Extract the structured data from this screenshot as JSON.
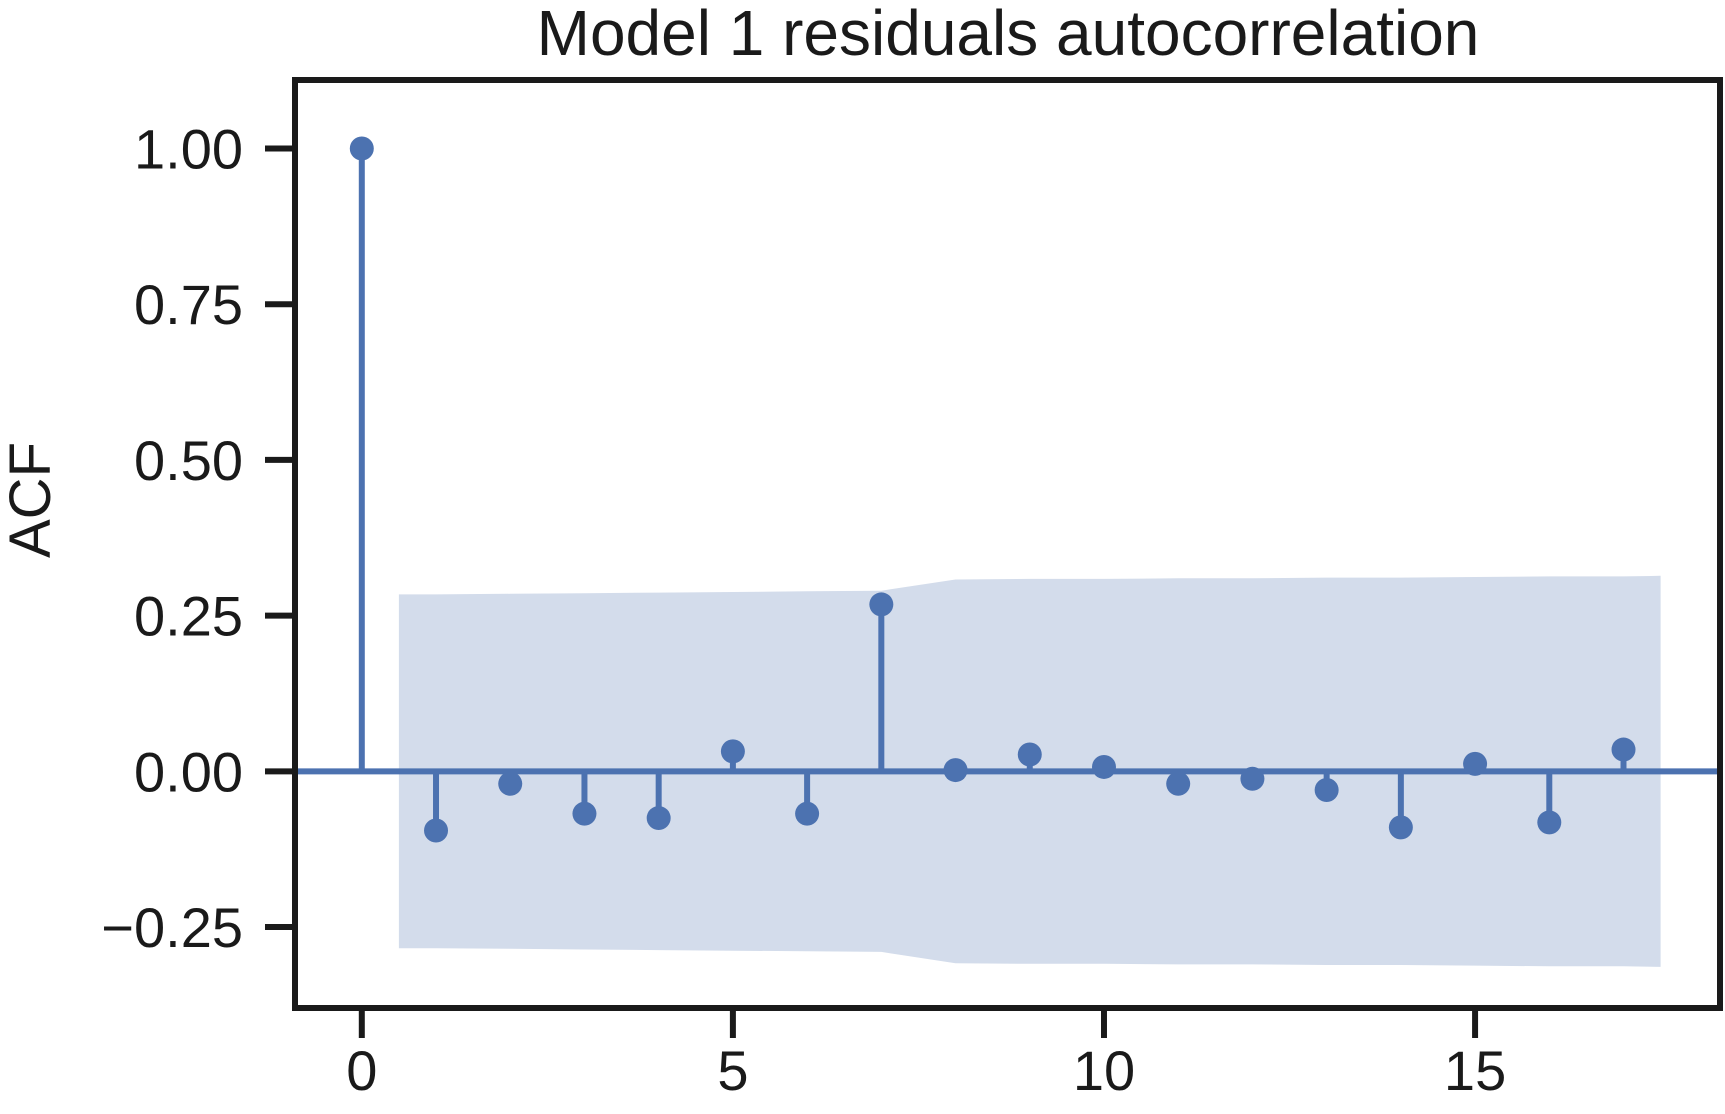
{
  "chart_data": {
    "type": "stem",
    "title": "Model 1 residuals autocorrelation",
    "xlabel": "",
    "ylabel": "ACF",
    "xlim": [
      -0.9,
      18.3
    ],
    "ylim": [
      -0.38,
      1.11
    ],
    "xticks": [
      0,
      5,
      10,
      15
    ],
    "xtick_labels": [
      "0",
      "5",
      "10",
      "15"
    ],
    "yticks": [
      1.0,
      0.75,
      0.5,
      0.25,
      0.0,
      -0.25
    ],
    "ytick_labels": [
      "1.00",
      "0.75",
      "0.50",
      "0.25",
      "0.00",
      "−0.25"
    ],
    "grid": false,
    "lags": [
      0,
      1,
      2,
      3,
      4,
      5,
      6,
      7,
      8,
      9,
      10,
      11,
      12,
      13,
      14,
      15,
      16,
      17
    ],
    "acf": [
      1.0,
      -0.095,
      -0.02,
      -0.068,
      -0.075,
      0.032,
      -0.068,
      0.268,
      0.002,
      0.027,
      0.007,
      -0.02,
      -0.012,
      -0.03,
      -0.09,
      0.012,
      -0.082,
      0.035
    ],
    "confidence_band": {
      "x": [
        0.5,
        1,
        2,
        3,
        4,
        5,
        6,
        7,
        8,
        9,
        10,
        11,
        12,
        13,
        14,
        15,
        16,
        17,
        17.5
      ],
      "upper": [
        0.284,
        0.284,
        0.285,
        0.286,
        0.287,
        0.288,
        0.289,
        0.29,
        0.308,
        0.309,
        0.309,
        0.31,
        0.31,
        0.311,
        0.311,
        0.312,
        0.313,
        0.313,
        0.314
      ],
      "lower": [
        -0.284,
        -0.284,
        -0.285,
        -0.286,
        -0.287,
        -0.288,
        -0.289,
        -0.29,
        -0.308,
        -0.309,
        -0.309,
        -0.31,
        -0.31,
        -0.311,
        -0.311,
        -0.312,
        -0.313,
        -0.313,
        -0.314
      ]
    },
    "colors": {
      "stem": "#4c72b0",
      "band": "#d3dceb",
      "axes": "#1a1a1a"
    }
  }
}
